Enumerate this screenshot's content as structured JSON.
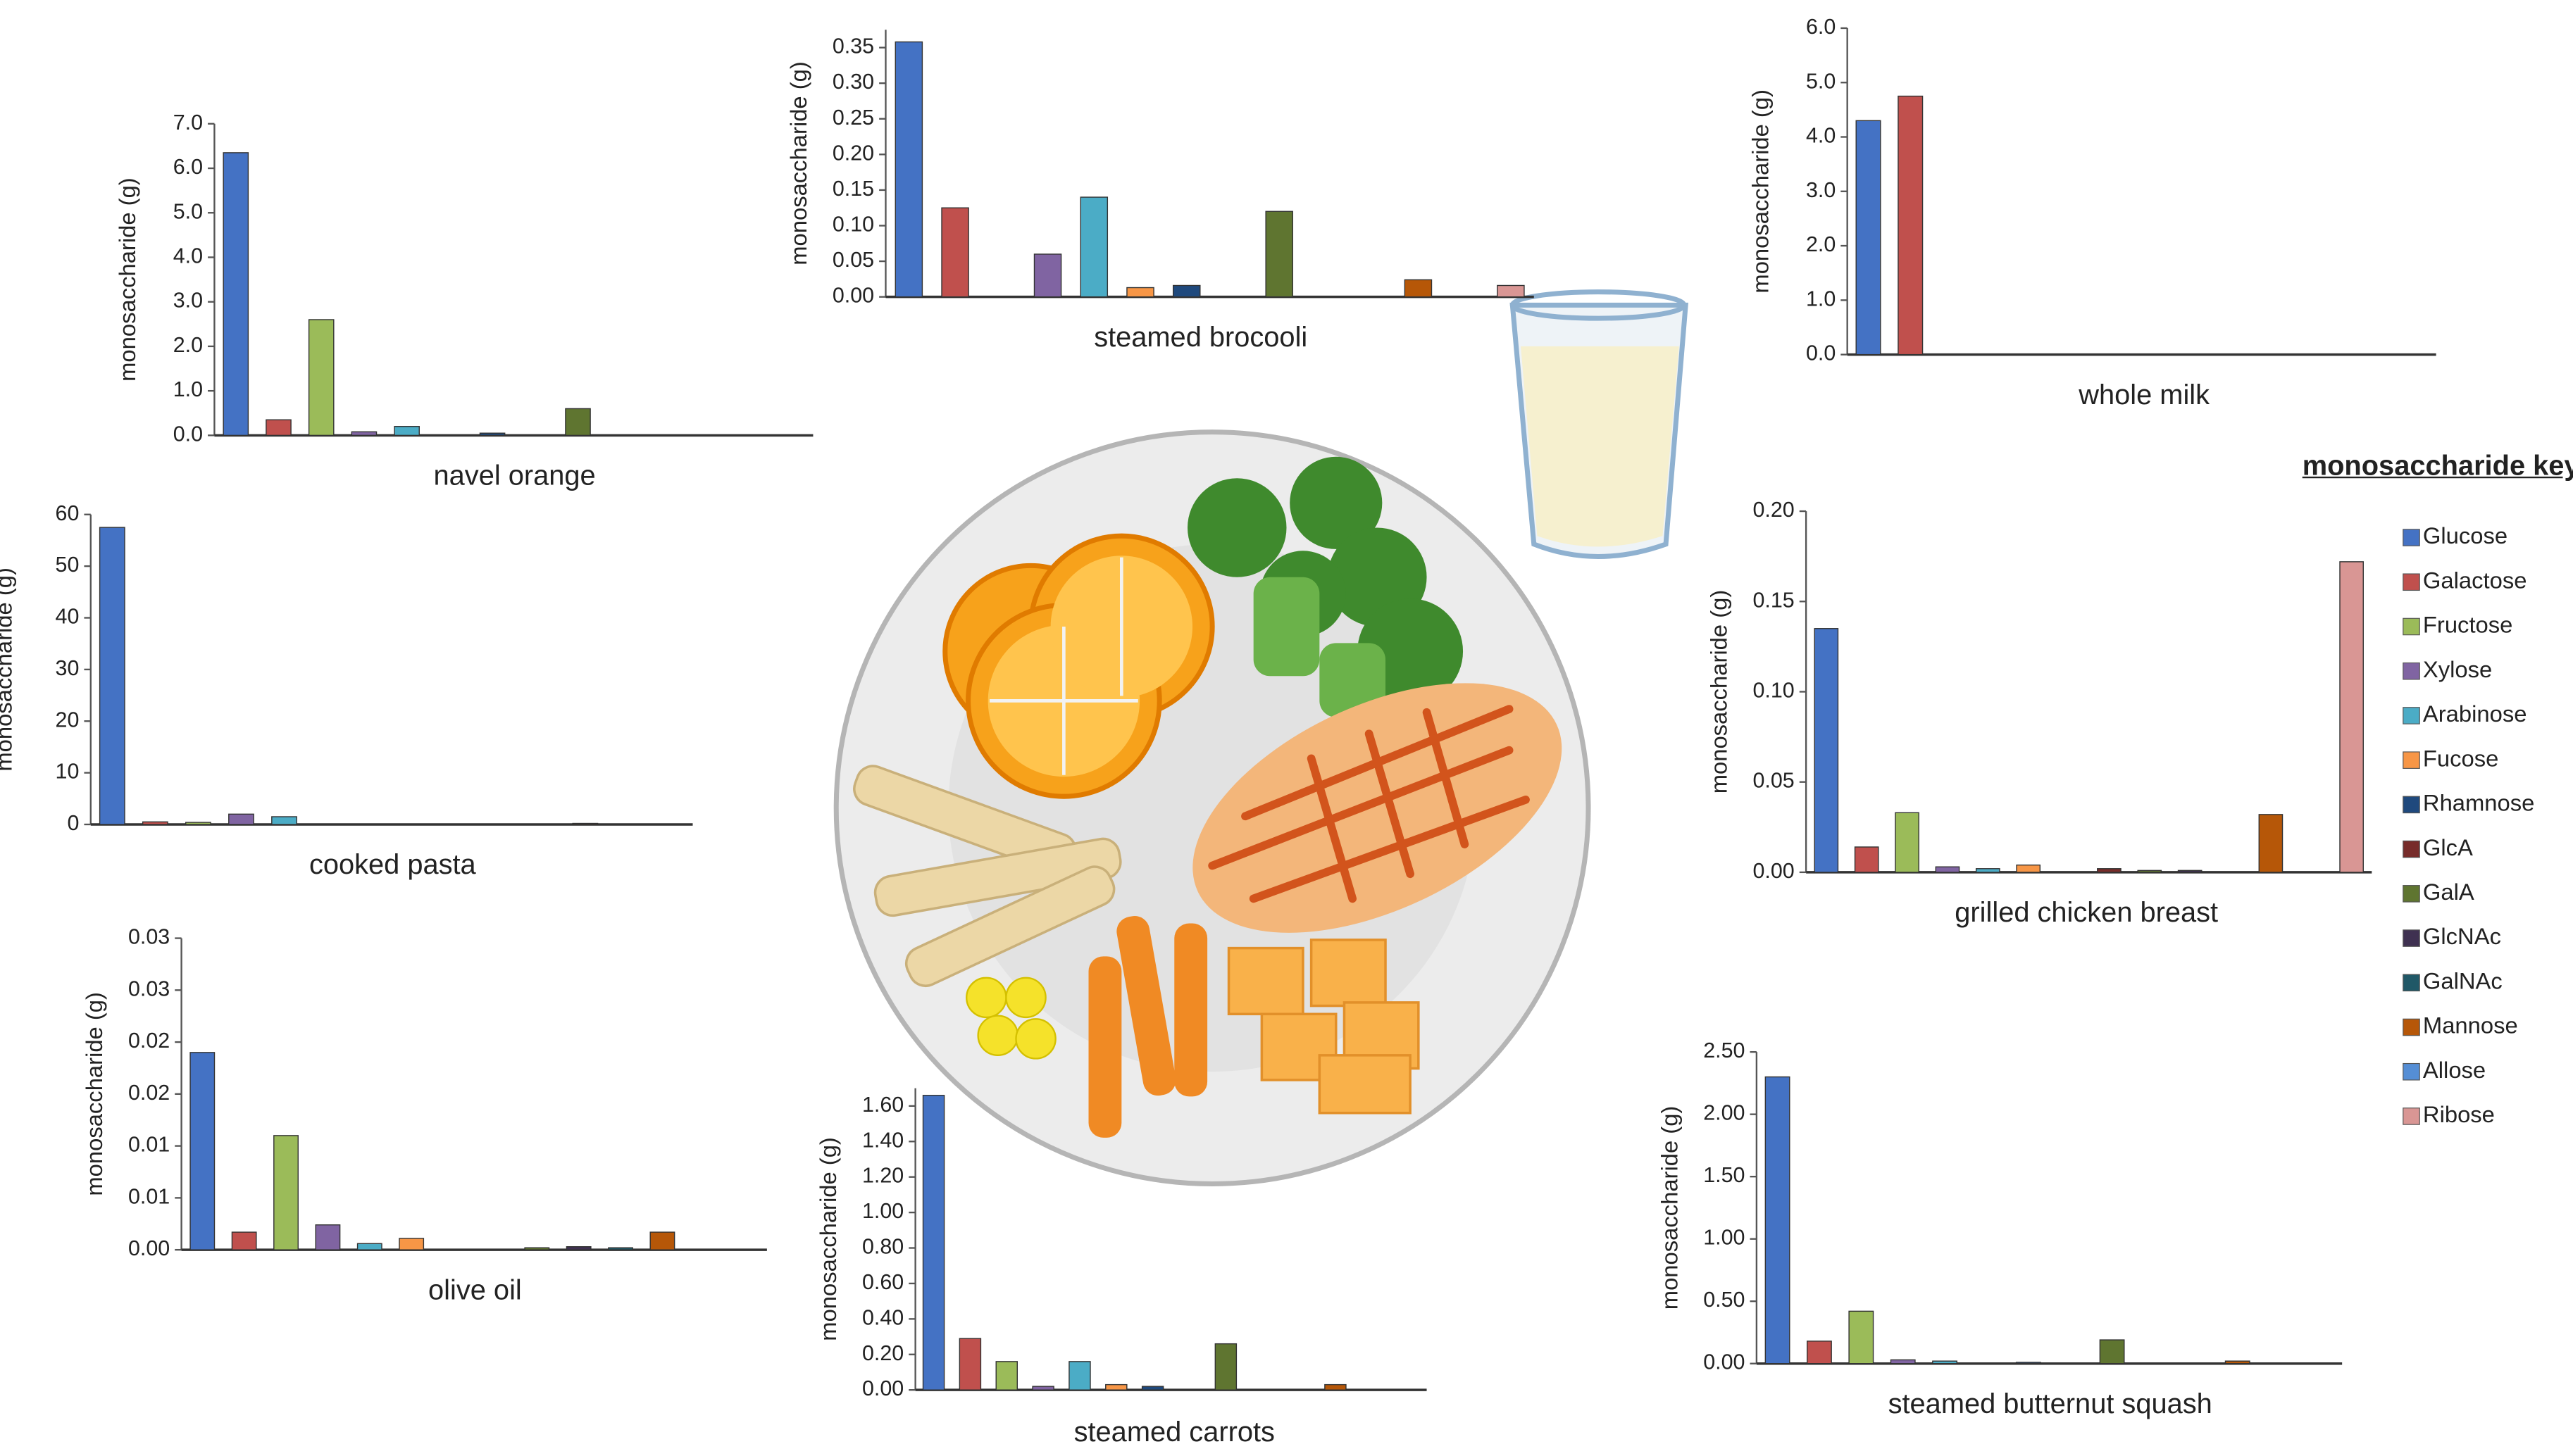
{
  "key": {
    "title": "monosaccharide key",
    "names": [
      "Glucose",
      "Galactose",
      "Fructose",
      "Xylose",
      "Arabinose",
      "Fucose",
      "Rhamnose",
      "GlcA",
      "GalA",
      "GlcNAc",
      "GalNAc",
      "Mannose",
      "Allose",
      "Ribose"
    ],
    "colors": [
      "#4472c4",
      "#c0504d",
      "#9bbb59",
      "#8064a2",
      "#4bacc6",
      "#f79646",
      "#1f497d",
      "#772c2a",
      "#5f7530",
      "#3f3151",
      "#205867",
      "#b65708",
      "#558ed5",
      "#d99694"
    ]
  },
  "chart_data": [
    {
      "type": "bar",
      "title": "navel orange",
      "ylabel": "monosaccharide (g)",
      "values": [
        6.35,
        0.35,
        2.6,
        0.08,
        0.2,
        0,
        0.05,
        0,
        0.6,
        0,
        0,
        0,
        0,
        0
      ],
      "ylim": [
        0,
        7
      ],
      "yticks": [
        {
          "value": 0,
          "label": "0.0"
        },
        {
          "value": 1,
          "label": "1.0"
        },
        {
          "value": 2,
          "label": "2.0"
        },
        {
          "value": 3,
          "label": "3.0"
        },
        {
          "value": 4,
          "label": "4.0"
        },
        {
          "value": 5,
          "label": "5.0"
        },
        {
          "value": 6,
          "label": "6.0"
        },
        {
          "value": 7,
          "label": "7.0"
        }
      ]
    },
    {
      "type": "bar",
      "title": "steamed brocooli",
      "ylabel": "monosaccharide (g)",
      "values": [
        0.358,
        0.125,
        0,
        0.06,
        0.14,
        0.013,
        0.016,
        0,
        0.12,
        0,
        0,
        0.024,
        0,
        0.016
      ],
      "ylim": [
        0,
        0.375
      ],
      "yticks": [
        {
          "value": 0,
          "label": "0.00"
        },
        0.05,
        {
          "value": 0.1,
          "label": "0.10"
        },
        0.15,
        {
          "value": 0.2,
          "label": "0.20"
        },
        0.25,
        {
          "value": 0.3,
          "label": "0.30"
        },
        0.35
      ]
    },
    {
      "type": "bar",
      "title": "whole milk",
      "ylabel": "monosaccharide (g)",
      "values": [
        4.3,
        4.75,
        0,
        0,
        0,
        0,
        0,
        0,
        0,
        0,
        0,
        0,
        0,
        0
      ],
      "ylim": [
        0,
        6
      ],
      "yticks": [
        {
          "value": 0,
          "label": "0.0"
        },
        {
          "value": 1,
          "label": "1.0"
        },
        {
          "value": 2,
          "label": "2.0"
        },
        {
          "value": 3,
          "label": "3.0"
        },
        {
          "value": 4,
          "label": "4.0"
        },
        {
          "value": 5,
          "label": "5.0"
        },
        {
          "value": 6,
          "label": "6.0"
        }
      ]
    },
    {
      "type": "bar",
      "title": "cooked pasta",
      "ylabel": "monosaccharide (g)",
      "values": [
        57.5,
        0.5,
        0.4,
        2,
        1.5,
        0,
        0,
        0,
        0,
        0,
        0,
        0.2,
        0,
        0
      ],
      "ylim": [
        0,
        60
      ],
      "yticks": [
        0,
        10,
        20,
        30,
        40,
        50,
        60
      ]
    },
    {
      "type": "bar",
      "title": "olive oil",
      "ylabel": "monosaccharide (g)",
      "values": [
        0.019,
        0.0017,
        0.011,
        0.0024,
        0.0006,
        0.0011,
        0,
        0,
        0.0002,
        0.0003,
        0.0002,
        0.0017,
        0,
        0
      ],
      "ylim": [
        0,
        0.03
      ],
      "yticks": [
        {
          "value": 0,
          "label": "0.00"
        },
        {
          "value": 0.005,
          "label": "0.01"
        },
        {
          "value": 0.01,
          "label": "0.01"
        },
        {
          "value": 0.015,
          "label": "0.02"
        },
        {
          "value": 0.02,
          "label": "0.02"
        },
        {
          "value": 0.025,
          "label": "0.03"
        },
        {
          "value": 0.03,
          "label": "0.03"
        }
      ]
    },
    {
      "type": "bar",
      "title": "steamed carrots",
      "ylabel": "monosaccharide (g)",
      "values": [
        1.66,
        0.29,
        0.16,
        0.02,
        0.16,
        0.03,
        0.02,
        0,
        0.26,
        0,
        0,
        0.03,
        0,
        0
      ],
      "ylim": [
        0,
        1.7
      ],
      "yticks": [
        {
          "value": 0,
          "label": "0.00"
        },
        {
          "value": 0.2,
          "label": "0.20"
        },
        {
          "value": 0.4,
          "label": "0.40"
        },
        {
          "value": 0.6,
          "label": "0.60"
        },
        {
          "value": 0.8,
          "label": "0.80"
        },
        {
          "value": 1,
          "label": "1.00"
        },
        {
          "value": 1.2,
          "label": "1.20"
        },
        {
          "value": 1.4,
          "label": "1.40"
        },
        {
          "value": 1.6,
          "label": "1.60"
        }
      ]
    },
    {
      "type": "bar",
      "title": "grilled chicken breast",
      "ylabel": "monosaccharide (g)",
      "values": [
        0.135,
        0.014,
        0.033,
        0.003,
        0.002,
        0.004,
        0,
        0.002,
        0.001,
        0.001,
        0,
        0.032,
        0,
        0.172
      ],
      "ylim": [
        0,
        0.2
      ],
      "yticks": [
        {
          "value": 0,
          "label": "0.00"
        },
        0.05,
        {
          "value": 0.1,
          "label": "0.10"
        },
        0.15,
        {
          "value": 0.2,
          "label": "0.20"
        }
      ]
    },
    {
      "type": "bar",
      "title": "steamed butternut squash",
      "ylabel": "monosaccharide (g)",
      "values": [
        2.3,
        0.18,
        0.42,
        0.03,
        0.02,
        0,
        0.01,
        0,
        0.19,
        0,
        0,
        0.02,
        0,
        0
      ],
      "ylim": [
        0,
        2.5
      ],
      "yticks": [
        {
          "value": 0,
          "label": "0.00"
        },
        {
          "value": 0.5,
          "label": "0.50"
        },
        {
          "value": 1,
          "label": "1.00"
        },
        {
          "value": 1.5,
          "label": "1.50"
        },
        {
          "value": 2,
          "label": "2.00"
        },
        {
          "value": 2.5,
          "label": "2.50"
        }
      ]
    }
  ]
}
